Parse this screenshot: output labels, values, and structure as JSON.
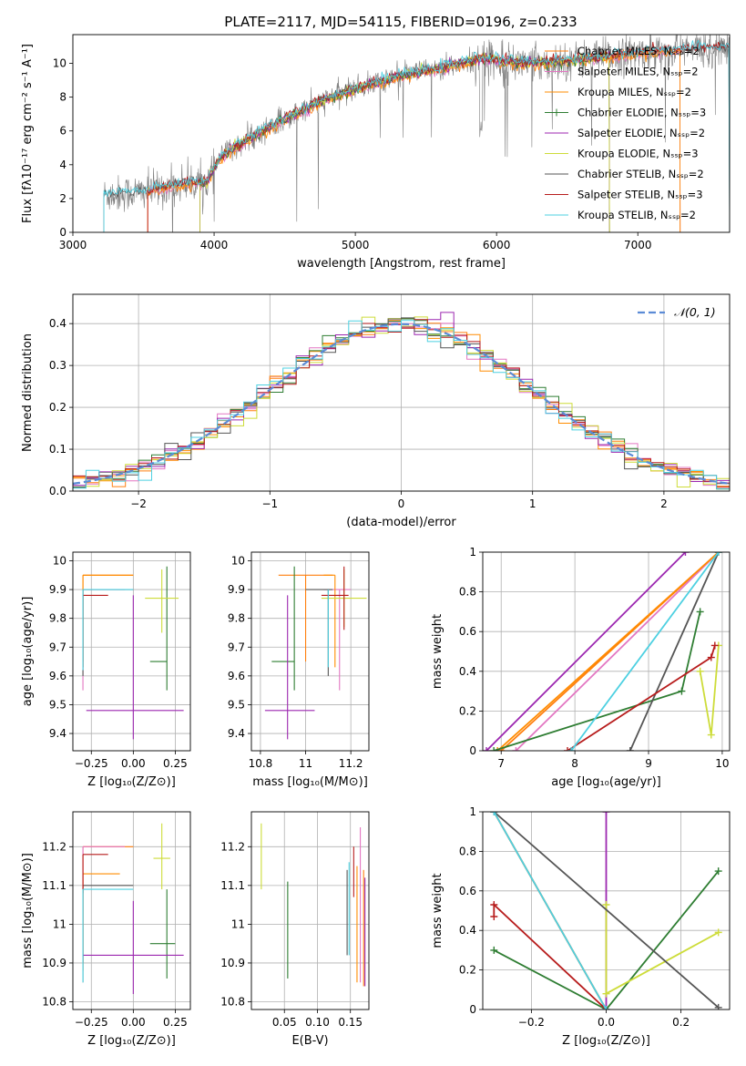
{
  "figure_title": "PLATE=2117, MJD=54115, FIBERID=0196, z=0.233",
  "colors": {
    "series": [
      "#ff7f0e",
      "#e377c2",
      "#ff8c00",
      "#2e7d32",
      "#9c27b0",
      "#cddc39",
      "#555555",
      "#b71c1c",
      "#4dd0e1"
    ],
    "gauss": "#5b8bd6",
    "observed": "#7f7f7f",
    "grid": "#b0b0b0"
  },
  "chart_data": [
    {
      "type": "line",
      "id": "spectrum",
      "xlabel": "wavelength [Angstrom, rest frame]",
      "ylabel": "Flux [fλ10⁻¹⁷ erg cm⁻² s⁻¹ A⁻¹]",
      "xlim": [
        3000,
        7650
      ],
      "ylim": [
        0,
        11.7
      ],
      "xticks": [
        3000,
        4000,
        5000,
        6000,
        7000
      ],
      "yticks": [
        0,
        2,
        4,
        6,
        8,
        10
      ],
      "grid": false,
      "legend_position": "top-right",
      "series": [
        {
          "name": "Chabrier MILES, Nₛₛₚ=2",
          "range": [
            3530,
            7300
          ]
        },
        {
          "name": "Salpeter MILES, Nₛₛₚ=2",
          "range": [
            3530,
            7300
          ]
        },
        {
          "name": "Kroupa MILES, Nₛₛₚ=2",
          "range": [
            3530,
            7300
          ]
        },
        {
          "name": "Chabrier ELODIE, Nₛₛₚ=3",
          "range": [
            3900,
            6800
          ]
        },
        {
          "name": "Salpeter ELODIE, Nₛₛₚ=2",
          "range": [
            3900,
            6800
          ]
        },
        {
          "name": "Kroupa ELODIE, Nₛₛₚ=3",
          "range": [
            3900,
            6800
          ]
        },
        {
          "name": "Chabrier STELIB, Nₛₛₚ=2",
          "range": [
            3220,
            7650
          ]
        },
        {
          "name": "Salpeter STELIB, Nₛₛₚ=3",
          "range": [
            3530,
            7650
          ]
        },
        {
          "name": "Kroupa STELIB, Nₛₛₚ=2",
          "range": [
            3220,
            7650
          ]
        }
      ],
      "continuum": [
        [
          3220,
          2.2
        ],
        [
          3500,
          2.4
        ],
        [
          3800,
          2.9
        ],
        [
          3950,
          3.0
        ],
        [
          4050,
          4.5
        ],
        [
          4300,
          5.8
        ],
        [
          4500,
          6.7
        ],
        [
          4800,
          7.9
        ],
        [
          5000,
          8.5
        ],
        [
          5300,
          9.2
        ],
        [
          5600,
          9.7
        ],
        [
          5900,
          10.3
        ],
        [
          6200,
          10.0
        ],
        [
          6600,
          10.2
        ],
        [
          7000,
          10.6
        ],
        [
          7300,
          10.8
        ],
        [
          7650,
          10.9
        ]
      ]
    },
    {
      "type": "line",
      "id": "residuals",
      "xlabel": "(data-model)/error",
      "ylabel": "Normed distribution",
      "xlim": [
        -2.5,
        2.5
      ],
      "ylim": [
        0,
        0.47
      ],
      "xticks": [
        -2,
        -1,
        0,
        1,
        2
      ],
      "xtick_labels": [
        "−2",
        "−1",
        "0",
        "1",
        "2"
      ],
      "yticks": [
        0.0,
        0.1,
        0.2,
        0.3,
        0.4
      ],
      "ytick_labels": [
        "0.0",
        "0.1",
        "0.2",
        "0.3",
        "0.4"
      ],
      "grid": true,
      "legend_position": "top-right",
      "gauss_label": "𝒩(0, 1)",
      "bin_width": 0.1
    },
    {
      "type": "scatter",
      "id": "age-vs-Z",
      "xlabel": "Z [log₁₀(Z/Z⊙)]",
      "ylabel": "age  [log₁₀(age/yr)]",
      "xlim": [
        -0.36,
        0.34
      ],
      "ylim": [
        9.34,
        10.03
      ],
      "xticks": [
        -0.25,
        0.0,
        0.25
      ],
      "xtick_labels": [
        "−0.25",
        "0.00",
        "0.25"
      ],
      "yticks": [
        9.4,
        9.5,
        9.6,
        9.7,
        9.8,
        9.9,
        10.0
      ],
      "grid": true,
      "points": [
        {
          "x": -0.3,
          "y": 9.95,
          "xerr": [
            0.0,
            0.3
          ],
          "yerr": [
            0.3,
            0.0
          ],
          "c": 0
        },
        {
          "x": -0.3,
          "y": 9.9,
          "xerr": [
            0.0,
            0.25
          ],
          "yerr": [
            0.35,
            0.0
          ],
          "c": 1
        },
        {
          "x": -0.3,
          "y": 9.95,
          "xerr": [
            0.0,
            0.3
          ],
          "yerr": [
            0.32,
            0.0
          ],
          "c": 2
        },
        {
          "x": 0.2,
          "y": 9.65,
          "xerr": [
            0.1,
            0.0
          ],
          "yerr": [
            0.1,
            0.33
          ],
          "c": 3
        },
        {
          "x": 0.0,
          "y": 9.48,
          "xerr": [
            0.28,
            0.3
          ],
          "yerr": [
            0.1,
            0.4
          ],
          "c": 4
        },
        {
          "x": 0.17,
          "y": 9.87,
          "xerr": [
            0.1,
            0.1
          ],
          "yerr": [
            0.12,
            0.1
          ],
          "c": 5
        },
        {
          "x": -0.3,
          "y": 9.9,
          "xerr": [
            0.0,
            0.3
          ],
          "yerr": [
            0.3,
            0.0
          ],
          "c": 6
        },
        {
          "x": -0.3,
          "y": 9.88,
          "xerr": [
            0.0,
            0.15
          ],
          "yerr": [
            0.25,
            0.0
          ],
          "c": 7
        },
        {
          "x": -0.3,
          "y": 9.9,
          "xerr": [
            0.0,
            0.3
          ],
          "yerr": [
            0.28,
            0.0
          ],
          "c": 8
        }
      ]
    },
    {
      "type": "scatter",
      "id": "age-vs-mass",
      "xlabel": "mass [log₁₀(M/M⊙)]",
      "ylabel": "",
      "xlim": [
        10.76,
        11.28
      ],
      "ylim": [
        9.34,
        10.03
      ],
      "xticks": [
        10.8,
        11.0,
        11.2
      ],
      "yticks": [
        9.4,
        9.5,
        9.6,
        9.7,
        9.8,
        9.9,
        10.0
      ],
      "grid": true,
      "points": [
        {
          "x": 11.0,
          "y": 9.95,
          "xerr": [
            0.12,
            0.12
          ],
          "yerr": [
            0.3,
            0.0
          ],
          "c": 0
        },
        {
          "x": 11.15,
          "y": 9.9,
          "xerr": [
            0.07,
            0.05
          ],
          "yerr": [
            0.35,
            0.0
          ],
          "c": 1
        },
        {
          "x": 11.13,
          "y": 9.95,
          "xerr": [
            0.05,
            0.0
          ],
          "yerr": [
            0.32,
            0.0
          ],
          "c": 2
        },
        {
          "x": 10.95,
          "y": 9.65,
          "xerr": [
            0.1,
            0.0
          ],
          "yerr": [
            0.1,
            0.33
          ],
          "c": 3
        },
        {
          "x": 10.92,
          "y": 9.48,
          "xerr": [
            0.1,
            0.12
          ],
          "yerr": [
            0.1,
            0.4
          ],
          "c": 4
        },
        {
          "x": 11.17,
          "y": 9.87,
          "xerr": [
            0.1,
            0.1
          ],
          "yerr": [
            0.1,
            0.1
          ],
          "c": 5
        },
        {
          "x": 11.1,
          "y": 9.9,
          "xerr": [
            0.1,
            0.02
          ],
          "yerr": [
            0.3,
            0.0
          ],
          "c": 6
        },
        {
          "x": 11.17,
          "y": 9.88,
          "xerr": [
            0.1,
            0.02
          ],
          "yerr": [
            0.12,
            0.1
          ],
          "c": 7
        },
        {
          "x": 11.1,
          "y": 9.9,
          "xerr": [
            0.0,
            0.0
          ],
          "yerr": [
            0.27,
            0.0
          ],
          "c": 8
        }
      ]
    },
    {
      "type": "line",
      "id": "massweight-vs-age",
      "xlabel": "age  [log₁₀(age/yr)]",
      "ylabel": "mass weight",
      "xlim": [
        6.75,
        10.1
      ],
      "ylim": [
        0,
        1.0
      ],
      "xticks": [
        7,
        8,
        9,
        10
      ],
      "yticks": [
        0.0,
        0.2,
        0.4,
        0.6,
        0.8,
        1.0
      ],
      "grid": true,
      "series": [
        {
          "c": 0,
          "x": [
            7.0,
            9.95
          ],
          "y": [
            0.0,
            1.0
          ]
        },
        {
          "c": 1,
          "x": [
            7.2,
            9.95
          ],
          "y": [
            0.0,
            1.0
          ]
        },
        {
          "c": 2,
          "x": [
            6.95,
            9.95
          ],
          "y": [
            0.0,
            1.0
          ]
        },
        {
          "c": 3,
          "x": [
            6.9,
            9.45,
            9.7
          ],
          "y": [
            0.0,
            0.3,
            0.7
          ]
        },
        {
          "c": 4,
          "x": [
            6.8,
            9.5
          ],
          "y": [
            0.0,
            1.0
          ]
        },
        {
          "c": 5,
          "x": [
            9.7,
            9.85,
            9.95
          ],
          "y": [
            0.4,
            0.08,
            0.53
          ]
        },
        {
          "c": 6,
          "x": [
            8.75,
            9.95
          ],
          "y": [
            0.0,
            1.0
          ]
        },
        {
          "c": 7,
          "x": [
            7.9,
            9.85,
            9.9
          ],
          "y": [
            0.0,
            0.47,
            0.53
          ]
        },
        {
          "c": 8,
          "x": [
            7.95,
            9.95
          ],
          "y": [
            0.0,
            1.0
          ]
        }
      ]
    },
    {
      "type": "scatter",
      "id": "mass-vs-Z",
      "xlabel": "Z [log₁₀(Z/Z⊙)]",
      "ylabel": "mass [log₁₀(M/M⊙)]",
      "xlim": [
        -0.36,
        0.34
      ],
      "ylim": [
        10.78,
        11.29
      ],
      "xticks": [
        -0.25,
        0.0,
        0.25
      ],
      "xtick_labels": [
        "−0.25",
        "0.00",
        "0.25"
      ],
      "yticks": [
        10.8,
        10.9,
        11.0,
        11.1,
        11.2
      ],
      "grid": true,
      "points": [
        {
          "x": -0.3,
          "y": 11.2,
          "xerr": [
            0.0,
            0.3
          ],
          "yerr": [
            0.3,
            0.0
          ],
          "c": 0
        },
        {
          "x": -0.3,
          "y": 11.2,
          "xerr": [
            0.0,
            0.25
          ],
          "yerr": [
            0.3,
            0.0
          ],
          "c": 1
        },
        {
          "x": -0.3,
          "y": 11.13,
          "xerr": [
            0.0,
            0.22
          ],
          "yerr": [
            0.25,
            0.0
          ],
          "c": 2
        },
        {
          "x": 0.2,
          "y": 10.95,
          "xerr": [
            0.1,
            0.05
          ],
          "yerr": [
            0.09,
            0.14
          ],
          "c": 3
        },
        {
          "x": 0.0,
          "y": 10.92,
          "xerr": [
            0.3,
            0.3
          ],
          "yerr": [
            0.1,
            0.14
          ],
          "c": 4
        },
        {
          "x": 0.17,
          "y": 11.17,
          "xerr": [
            0.05,
            0.05
          ],
          "yerr": [
            0.08,
            0.09
          ],
          "c": 5
        },
        {
          "x": -0.3,
          "y": 11.1,
          "xerr": [
            0.0,
            0.3
          ],
          "yerr": [
            0.25,
            0.0
          ],
          "c": 6
        },
        {
          "x": -0.3,
          "y": 11.18,
          "xerr": [
            0.0,
            0.15
          ],
          "yerr": [
            0.1,
            0.0
          ],
          "c": 7
        },
        {
          "x": -0.3,
          "y": 11.09,
          "xerr": [
            0.0,
            0.3
          ],
          "yerr": [
            0.24,
            0.0
          ],
          "c": 8
        }
      ]
    },
    {
      "type": "scatter",
      "id": "mass-vs-EBV",
      "xlabel": "E(B-V)",
      "ylabel": "",
      "xlim": [
        0.0,
        0.178
      ],
      "ylim": [
        10.78,
        11.29
      ],
      "xticks": [
        0.05,
        0.1,
        0.15
      ],
      "xtick_labels": [
        "0.05",
        "0.10",
        "0.15"
      ],
      "yticks": [
        10.8,
        10.9,
        11.0,
        11.1,
        11.2
      ],
      "grid": true,
      "points": [
        {
          "x": 0.17,
          "y": 11.0,
          "yerr": [
            0.16,
            0.14
          ],
          "c": 0
        },
        {
          "x": 0.165,
          "y": 11.09,
          "yerr": [
            0.24,
            0.16
          ],
          "c": 1
        },
        {
          "x": 0.16,
          "y": 11.05,
          "yerr": [
            0.2,
            0.1
          ],
          "c": 2
        },
        {
          "x": 0.055,
          "y": 11.0,
          "yerr": [
            0.14,
            0.11
          ],
          "c": 3
        },
        {
          "x": 0.172,
          "y": 11.0,
          "yerr": [
            0.16,
            0.12
          ],
          "c": 4
        },
        {
          "x": 0.015,
          "y": 11.17,
          "yerr": [
            0.08,
            0.09
          ],
          "c": 5
        },
        {
          "x": 0.145,
          "y": 11.03,
          "yerr": [
            0.11,
            0.11
          ],
          "c": 6
        },
        {
          "x": 0.155,
          "y": 11.13,
          "yerr": [
            0.06,
            0.07
          ],
          "c": 7
        },
        {
          "x": 0.148,
          "y": 11.05,
          "yerr": [
            0.13,
            0.11
          ],
          "c": 8
        }
      ]
    },
    {
      "type": "line",
      "id": "massweight-vs-Z",
      "xlabel": "Z [log₁₀(Z/Z⊙)]",
      "ylabel": "mass weight",
      "xlim": [
        -0.33,
        0.33
      ],
      "ylim": [
        0,
        1.0
      ],
      "xticks": [
        -0.2,
        0.0,
        0.2
      ],
      "xtick_labels": [
        "−0.2",
        "0.0",
        "0.2"
      ],
      "yticks": [
        0.0,
        0.2,
        0.4,
        0.6,
        0.8,
        1.0
      ],
      "grid": true,
      "series": [
        {
          "c": 0,
          "x": [
            -0.3,
            0.0
          ],
          "y": [
            1.0,
            0.0
          ]
        },
        {
          "c": 1,
          "x": [
            -0.3,
            0.0
          ],
          "y": [
            1.0,
            0.0
          ]
        },
        {
          "c": 2,
          "x": [
            -0.3,
            0.0
          ],
          "y": [
            1.0,
            0.0
          ]
        },
        {
          "c": 3,
          "x": [
            -0.3,
            0.0,
            0.3
          ],
          "y": [
            0.3,
            0.0,
            0.7
          ]
        },
        {
          "c": 4,
          "x": [
            0.0,
            0.0
          ],
          "y": [
            0.0,
            1.0
          ]
        },
        {
          "c": 5,
          "x": [
            0.0,
            0.0,
            0.3
          ],
          "y": [
            0.53,
            0.08,
            0.39
          ]
        },
        {
          "c": 6,
          "x": [
            -0.3,
            0.3
          ],
          "y": [
            1.0,
            0.01
          ]
        },
        {
          "c": 7,
          "x": [
            -0.3,
            -0.3,
            0.0
          ],
          "y": [
            0.47,
            0.53,
            0.0
          ]
        },
        {
          "c": 8,
          "x": [
            -0.3,
            0.0
          ],
          "y": [
            1.0,
            0.0
          ]
        }
      ]
    }
  ]
}
